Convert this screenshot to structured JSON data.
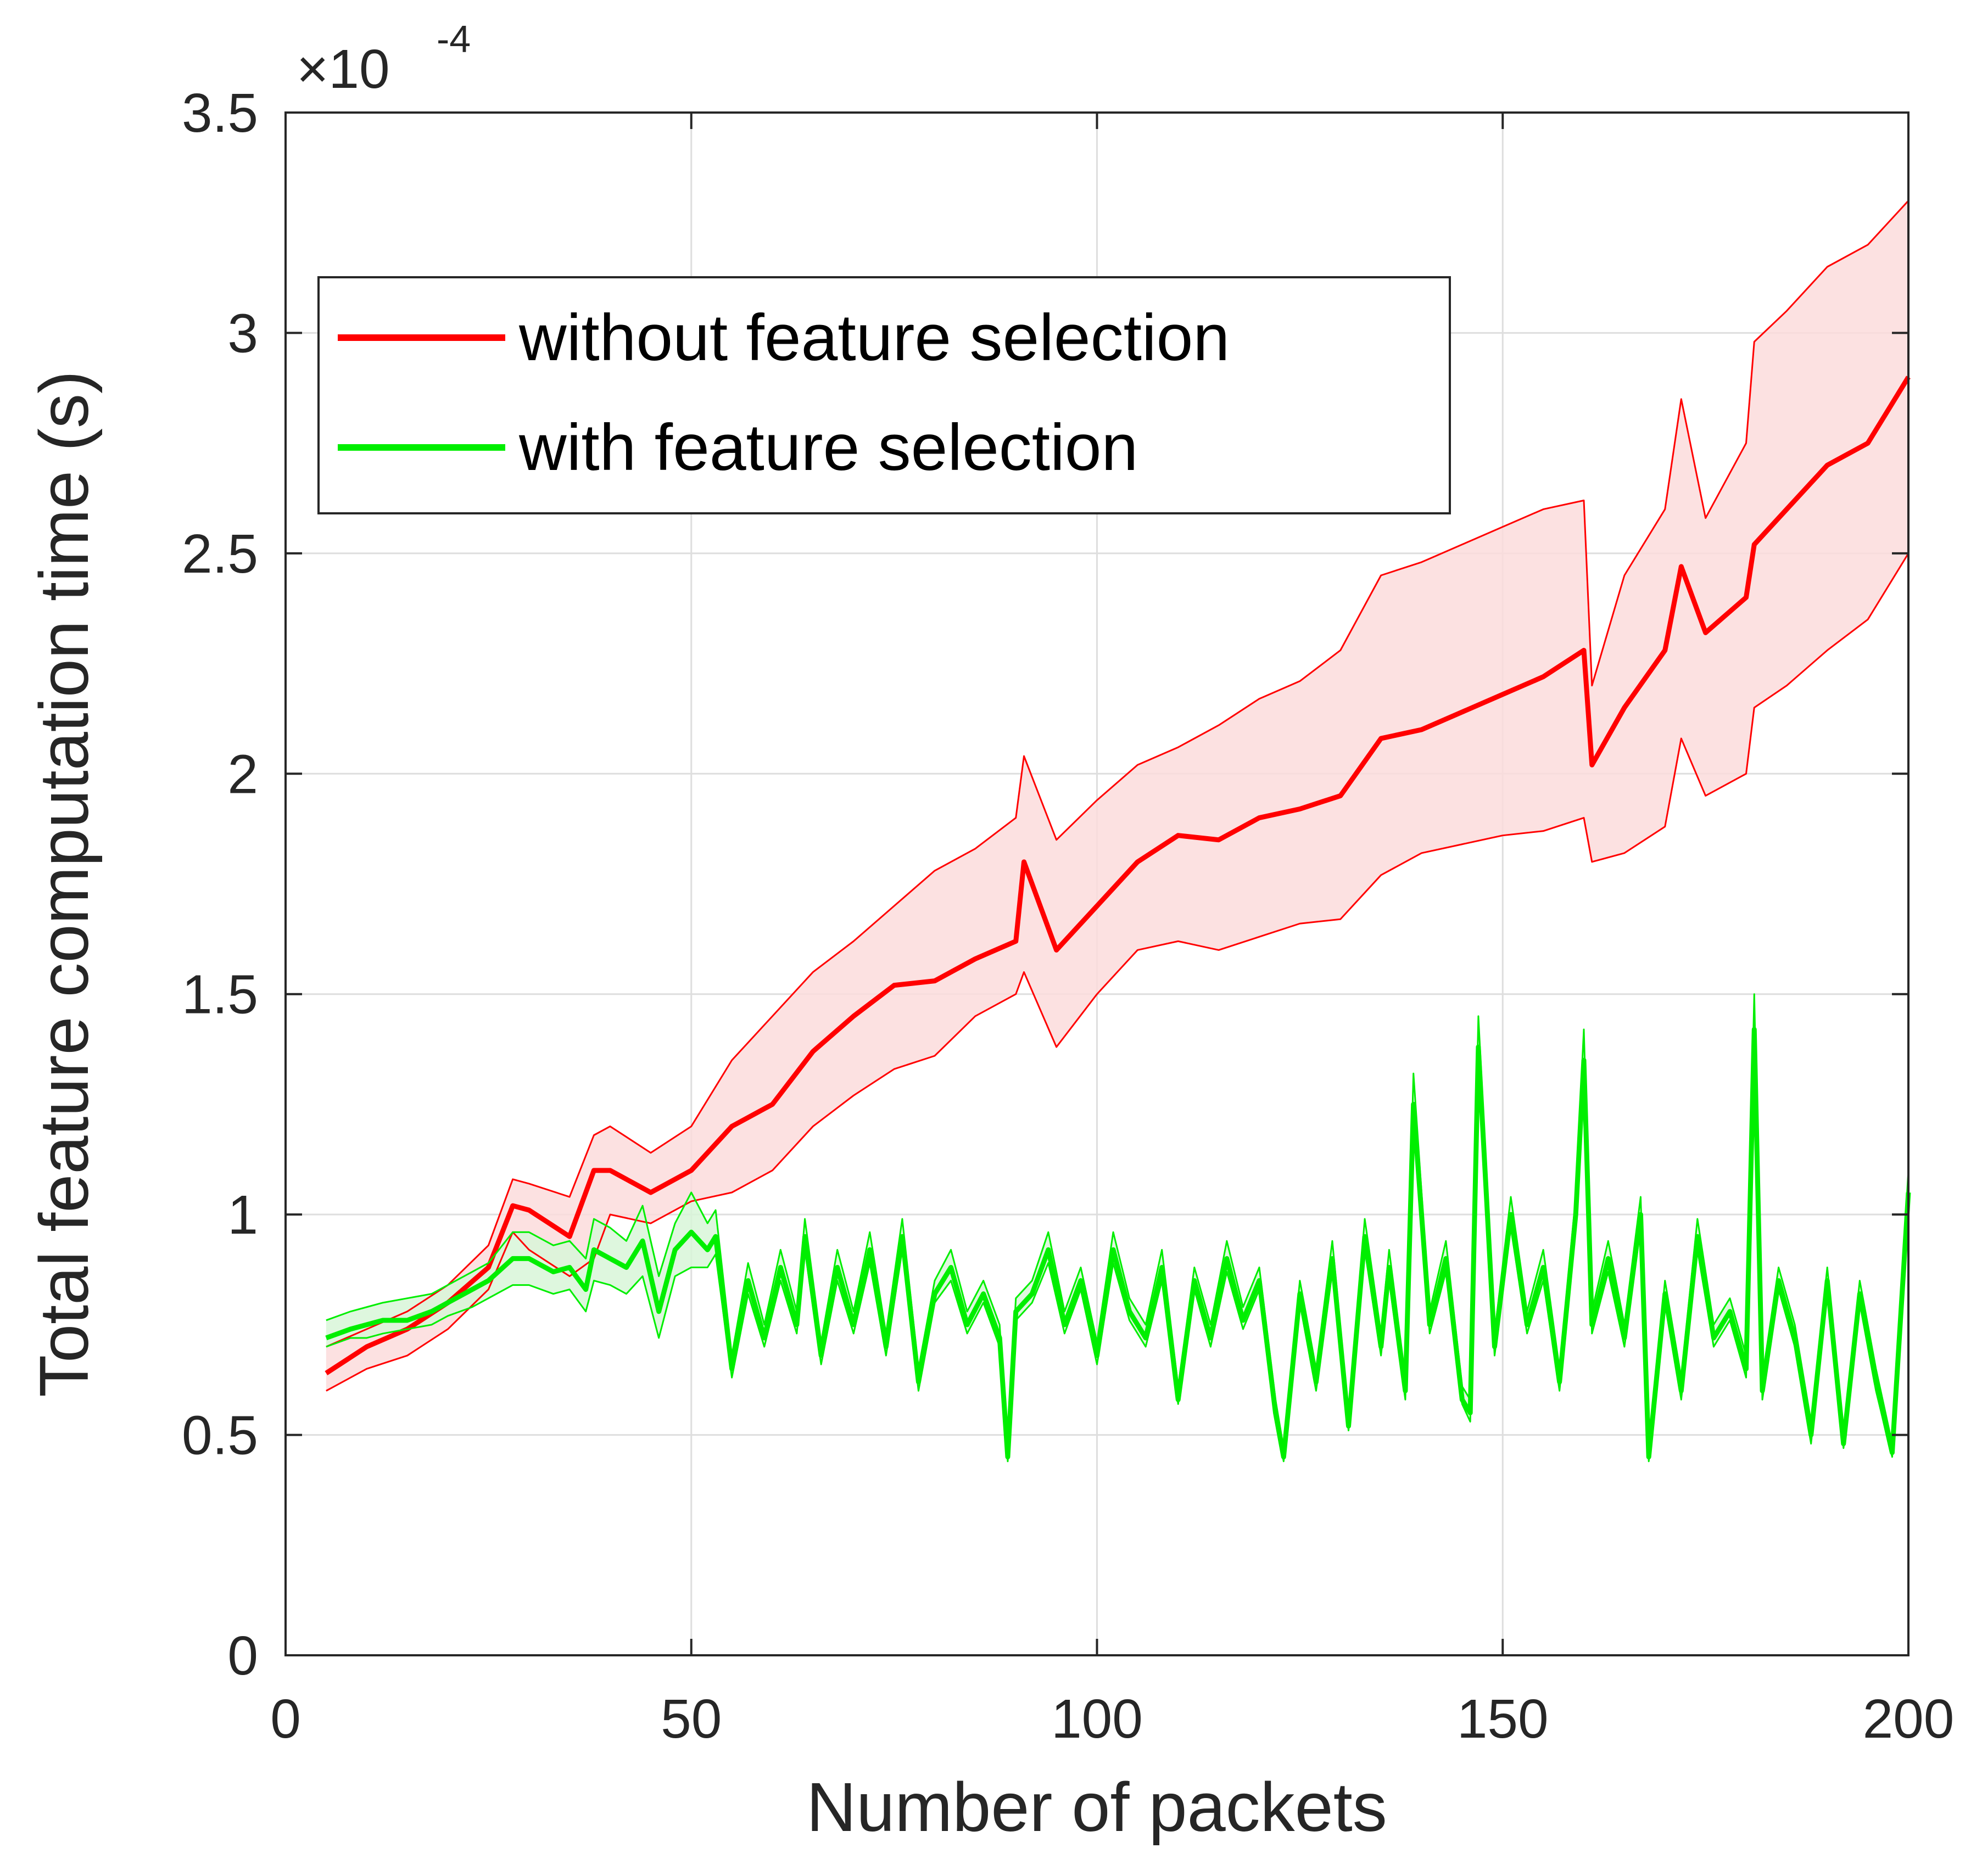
{
  "chart_data": {
    "type": "line",
    "title": "",
    "xlabel": "Number of packets",
    "ylabel": "Total feature computation time (s)",
    "exponent_label": {
      "base": "×10",
      "power": "-4"
    },
    "xlim": [
      0,
      200
    ],
    "ylim": [
      0,
      3.5
    ],
    "xticks": [
      0,
      50,
      100,
      150,
      200
    ],
    "xtick_labels": [
      "0",
      "50",
      "100",
      "150",
      "200"
    ],
    "yticks": [
      0,
      0.5,
      1,
      1.5,
      2,
      2.5,
      3,
      3.5
    ],
    "ytick_labels": [
      "0",
      "0.5",
      "1",
      "1.5",
      "2",
      "2.5",
      "3",
      "3.5"
    ],
    "grid": true,
    "legend_position": "top-left",
    "series": [
      {
        "name": "without feature selection",
        "color": "#ff0000",
        "band_color": "#fcdcdc",
        "x": [
          5,
          10,
          15,
          20,
          25,
          28,
          30,
          35,
          38,
          40,
          45,
          50,
          55,
          60,
          65,
          70,
          75,
          80,
          85,
          90,
          91,
          95,
          100,
          105,
          110,
          115,
          120,
          125,
          130,
          135,
          140,
          145,
          150,
          155,
          160,
          161,
          165,
          170,
          172,
          175,
          180,
          181,
          185,
          190,
          195,
          200
        ],
        "values": [
          0.64,
          0.7,
          0.74,
          0.8,
          0.88,
          1.02,
          1.01,
          0.95,
          1.1,
          1.1,
          1.05,
          1.1,
          1.2,
          1.25,
          1.37,
          1.45,
          1.52,
          1.53,
          1.58,
          1.62,
          1.8,
          1.6,
          1.7,
          1.8,
          1.86,
          1.85,
          1.9,
          1.92,
          1.95,
          2.08,
          2.1,
          2.14,
          2.18,
          2.22,
          2.28,
          2.02,
          2.15,
          2.28,
          2.47,
          2.32,
          2.4,
          2.52,
          2.6,
          2.7,
          2.75,
          2.9
        ],
        "lower": [
          0.6,
          0.65,
          0.68,
          0.74,
          0.83,
          0.96,
          0.92,
          0.86,
          0.9,
          1.0,
          0.98,
          1.03,
          1.05,
          1.1,
          1.2,
          1.27,
          1.33,
          1.36,
          1.45,
          1.5,
          1.55,
          1.38,
          1.5,
          1.6,
          1.62,
          1.6,
          1.63,
          1.66,
          1.67,
          1.77,
          1.82,
          1.84,
          1.86,
          1.87,
          1.9,
          1.8,
          1.82,
          1.88,
          2.08,
          1.95,
          2.0,
          2.15,
          2.2,
          2.28,
          2.35,
          2.5
        ],
        "upper": [
          0.7,
          0.74,
          0.78,
          0.84,
          0.93,
          1.08,
          1.07,
          1.04,
          1.18,
          1.2,
          1.14,
          1.2,
          1.35,
          1.45,
          1.55,
          1.62,
          1.7,
          1.78,
          1.83,
          1.9,
          2.04,
          1.85,
          1.94,
          2.02,
          2.06,
          2.11,
          2.17,
          2.21,
          2.28,
          2.45,
          2.48,
          2.52,
          2.56,
          2.6,
          2.62,
          2.2,
          2.45,
          2.6,
          2.85,
          2.58,
          2.75,
          2.98,
          3.05,
          3.15,
          3.2,
          3.3
        ]
      },
      {
        "name": "with feature selection",
        "color": "#00ee00",
        "band_color": "#d8f6d8",
        "x": [
          5,
          8,
          10,
          12,
          15,
          18,
          20,
          23,
          25,
          28,
          30,
          33,
          35,
          37,
          38,
          40,
          42,
          44,
          46,
          48,
          50,
          52,
          53,
          55,
          57,
          59,
          61,
          63,
          64,
          66,
          68,
          70,
          72,
          74,
          76,
          78,
          80,
          82,
          84,
          86,
          88,
          89,
          90,
          92,
          94,
          96,
          98,
          100,
          102,
          104,
          106,
          108,
          110,
          112,
          114,
          116,
          118,
          120,
          122,
          123,
          125,
          127,
          129,
          131,
          133,
          135,
          136,
          138,
          139,
          141,
          143,
          145,
          146,
          147,
          149,
          151,
          153,
          155,
          157,
          159,
          160,
          161,
          163,
          165,
          167,
          168,
          170,
          172,
          174,
          176,
          178,
          180,
          181,
          182,
          184,
          186,
          188,
          190,
          192,
          194,
          196,
          198,
          200
        ],
        "values": [
          0.72,
          0.74,
          0.75,
          0.76,
          0.76,
          0.78,
          0.8,
          0.83,
          0.85,
          0.9,
          0.9,
          0.87,
          0.88,
          0.83,
          0.92,
          0.9,
          0.88,
          0.94,
          0.78,
          0.92,
          0.96,
          0.92,
          0.95,
          0.65,
          0.85,
          0.72,
          0.88,
          0.75,
          0.95,
          0.68,
          0.88,
          0.75,
          0.92,
          0.7,
          0.95,
          0.62,
          0.82,
          0.88,
          0.75,
          0.82,
          0.72,
          0.45,
          0.78,
          0.82,
          0.92,
          0.75,
          0.85,
          0.68,
          0.92,
          0.78,
          0.72,
          0.88,
          0.58,
          0.85,
          0.72,
          0.9,
          0.76,
          0.85,
          0.55,
          0.45,
          0.82,
          0.62,
          0.9,
          0.52,
          0.95,
          0.7,
          0.88,
          0.6,
          1.25,
          0.75,
          0.9,
          0.58,
          0.55,
          1.38,
          0.7,
          1.0,
          0.75,
          0.88,
          0.62,
          1.0,
          1.35,
          0.75,
          0.9,
          0.72,
          1.0,
          0.45,
          0.82,
          0.6,
          0.95,
          0.72,
          0.78,
          0.65,
          1.42,
          0.6,
          0.85,
          0.72,
          0.5,
          0.85,
          0.48,
          0.82,
          0.62,
          0.46,
          1.05
        ],
        "lower": [
          0.7,
          0.72,
          0.72,
          0.73,
          0.74,
          0.75,
          0.77,
          0.79,
          0.81,
          0.84,
          0.84,
          0.82,
          0.83,
          0.78,
          0.85,
          0.84,
          0.82,
          0.86,
          0.72,
          0.86,
          0.88,
          0.88,
          0.91,
          0.63,
          0.82,
          0.7,
          0.85,
          0.73,
          0.92,
          0.66,
          0.85,
          0.73,
          0.89,
          0.68,
          0.92,
          0.6,
          0.8,
          0.85,
          0.73,
          0.8,
          0.7,
          0.44,
          0.76,
          0.8,
          0.89,
          0.73,
          0.83,
          0.66,
          0.89,
          0.76,
          0.7,
          0.85,
          0.57,
          0.83,
          0.7,
          0.87,
          0.74,
          0.83,
          0.54,
          0.44,
          0.8,
          0.6,
          0.87,
          0.51,
          0.92,
          0.68,
          0.85,
          0.58,
          1.2,
          0.73,
          0.87,
          0.57,
          0.53,
          1.33,
          0.68,
          0.97,
          0.73,
          0.85,
          0.6,
          0.97,
          1.3,
          0.73,
          0.87,
          0.7,
          0.97,
          0.44,
          0.8,
          0.58,
          0.92,
          0.7,
          0.76,
          0.63,
          1.37,
          0.58,
          0.83,
          0.7,
          0.48,
          0.83,
          0.47,
          0.8,
          0.6,
          0.45,
          1.02
        ],
        "upper": [
          0.76,
          0.78,
          0.79,
          0.8,
          0.81,
          0.82,
          0.84,
          0.87,
          0.89,
          0.96,
          0.96,
          0.93,
          0.94,
          0.9,
          0.99,
          0.97,
          0.94,
          1.02,
          0.86,
          0.98,
          1.05,
          0.98,
          1.01,
          0.68,
          0.89,
          0.75,
          0.92,
          0.78,
          0.99,
          0.71,
          0.92,
          0.78,
          0.96,
          0.73,
          0.99,
          0.65,
          0.85,
          0.92,
          0.78,
          0.85,
          0.75,
          0.47,
          0.81,
          0.85,
          0.96,
          0.78,
          0.88,
          0.71,
          0.96,
          0.81,
          0.75,
          0.92,
          0.61,
          0.88,
          0.75,
          0.94,
          0.79,
          0.88,
          0.58,
          0.47,
          0.85,
          0.65,
          0.94,
          0.55,
          0.99,
          0.73,
          0.92,
          0.63,
          1.32,
          0.78,
          0.94,
          0.61,
          0.58,
          1.45,
          0.73,
          1.04,
          0.78,
          0.92,
          0.65,
          1.04,
          1.42,
          0.78,
          0.94,
          0.75,
          1.04,
          0.47,
          0.85,
          0.63,
          0.99,
          0.75,
          0.81,
          0.68,
          1.5,
          0.63,
          0.88,
          0.75,
          0.53,
          0.88,
          0.5,
          0.85,
          0.65,
          0.48,
          1.1
        ]
      }
    ]
  }
}
